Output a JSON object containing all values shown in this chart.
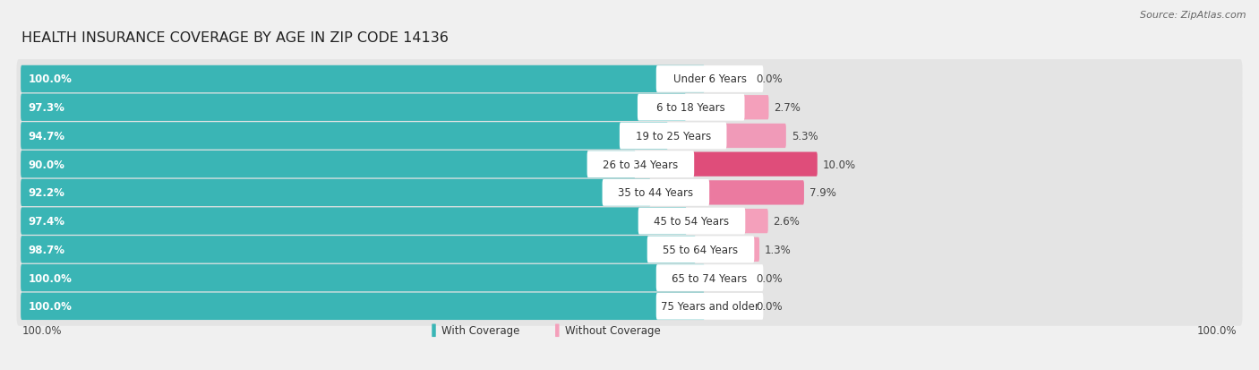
{
  "title": "HEALTH INSURANCE COVERAGE BY AGE IN ZIP CODE 14136",
  "source": "Source: ZipAtlas.com",
  "categories": [
    "Under 6 Years",
    "6 to 18 Years",
    "19 to 25 Years",
    "26 to 34 Years",
    "35 to 44 Years",
    "45 to 54 Years",
    "55 to 64 Years",
    "65 to 74 Years",
    "75 Years and older"
  ],
  "with_coverage": [
    100.0,
    97.3,
    94.7,
    90.0,
    92.2,
    97.4,
    98.7,
    100.0,
    100.0
  ],
  "without_coverage": [
    0.0,
    2.7,
    5.3,
    10.0,
    7.9,
    2.6,
    1.3,
    0.0,
    0.0
  ],
  "color_with": "#3ab5b5",
  "color_without_shades": [
    "#f4b8cc",
    "#f4a0bb",
    "#f09ab8",
    "#df4d7a",
    "#eb7aa0",
    "#f4a0bb",
    "#f4a0bb",
    "#f4b8cc",
    "#f4b8cc"
  ],
  "bg_color": "#f0f0f0",
  "bar_bg_color": "#e4e4e4",
  "title_fontsize": 11.5,
  "label_fontsize": 8.5,
  "legend_fontsize": 8.5,
  "source_fontsize": 8
}
